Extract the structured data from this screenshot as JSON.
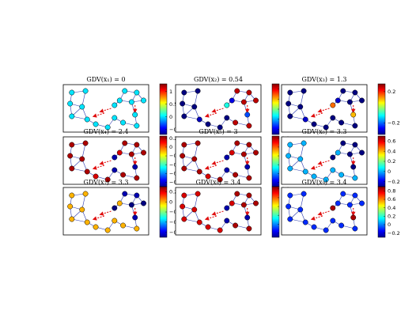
{
  "figure": {
    "panels": [
      {
        "title": "GDV(x₁) = 0",
        "colorbar_ticks": [
          "1",
          "0.5",
          "0",
          "−0.5"
        ],
        "colorbar_range": [
          -0.7,
          1.3
        ],
        "node_values": [
          0.0,
          0.0,
          0.0,
          0.0,
          0.0,
          0.0,
          0.0,
          0.0,
          0.0,
          0.0,
          0.0,
          0.0,
          0.0,
          0.0,
          0.0,
          0.0,
          0.0,
          0.0
        ]
      },
      {
        "title": "GDV(x₂) = 0.54",
        "colorbar_ticks": [
          "0.3",
          "0.2",
          "0.1",
          "0",
          "−0.1"
        ],
        "colorbar_range": [
          -0.15,
          0.35
        ],
        "node_values": [
          -0.15,
          -0.15,
          -0.15,
          -0.15,
          -0.15,
          -0.12,
          0.05,
          -0.15,
          -0.15,
          0.32,
          0.32,
          -0.1,
          0.32,
          0.32,
          -0.05,
          0.32,
          0.32,
          -0.15
        ]
      },
      {
        "title": "GDV(x₃) = 1.3",
        "colorbar_ticks": [
          "0.2",
          "−0.2"
        ],
        "colorbar_range": [
          -0.35,
          0.3
        ],
        "node_values": [
          -0.35,
          -0.35,
          -0.35,
          -0.35,
          -0.35,
          -0.3,
          0.15,
          -0.35,
          -0.35,
          -0.35,
          -0.35,
          -0.3,
          -0.35,
          -0.35,
          0.1,
          -0.35,
          -0.35,
          -0.35
        ]
      },
      {
        "title": "GDV(x₄) = 2.4",
        "colorbar_ticks": [
          "0.2",
          "0",
          "−0.2",
          "−0.4",
          "−0.6",
          "−0.8"
        ],
        "colorbar_range": [
          -0.9,
          0.25
        ],
        "node_values": [
          0.2,
          0.2,
          0.2,
          0.2,
          0.2,
          0.2,
          -0.85,
          0.15,
          0.2,
          0.2,
          0.2,
          0.15,
          0.2,
          0.2,
          -0.85,
          0.2,
          0.2,
          -0.85
        ]
      },
      {
        "title": "GDV(x₅) = 3",
        "colorbar_ticks": [
          "0.2",
          "0",
          "−0.2",
          "−0.4",
          "−0.6",
          "−0.8"
        ],
        "colorbar_range": [
          -0.9,
          0.25
        ],
        "node_values": [
          0.2,
          0.2,
          0.2,
          0.2,
          0.2,
          0.2,
          -0.85,
          0.15,
          0.2,
          0.2,
          0.2,
          0.15,
          0.2,
          0.2,
          -0.85,
          0.2,
          0.2,
          -0.85
        ]
      },
      {
        "title": "GDV(x₆) = 3.3",
        "colorbar_ticks": [
          "0.6",
          "0.4",
          "0.2",
          "0",
          "−0.2"
        ],
        "colorbar_range": [
          -0.3,
          0.7
        ],
        "node_values": [
          0.0,
          0.0,
          0.0,
          0.0,
          0.0,
          0.0,
          -0.3,
          0.0,
          0.0,
          -0.3,
          -0.3,
          0.0,
          -0.3,
          -0.3,
          -0.3,
          0.0,
          0.0,
          0.0
        ]
      },
      {
        "title": "GDV(x₇) = 3.3",
        "colorbar_ticks": [
          "0.2",
          "0",
          "−0.2",
          "−0.4",
          "−0.6"
        ],
        "colorbar_range": [
          -0.7,
          0.3
        ],
        "node_values": [
          0.0,
          0.0,
          0.0,
          0.0,
          0.0,
          0.0,
          -0.7,
          0.0,
          0.0,
          -0.65,
          -0.65,
          0.0,
          -0.7,
          -0.7,
          -0.65,
          0.0,
          0.0,
          0.0
        ]
      },
      {
        "title": "GDV(x₈) = 3.4",
        "colorbar_ticks": [
          "0.2",
          "0",
          "−0.2",
          "−0.4",
          "−0.6",
          "−0.8"
        ],
        "colorbar_range": [
          -0.9,
          0.25
        ],
        "node_values": [
          0.15,
          0.15,
          0.15,
          0.15,
          0.15,
          0.15,
          -0.85,
          0.15,
          0.15,
          0.2,
          0.2,
          0.15,
          0.2,
          0.2,
          -0.85,
          0.2,
          0.2,
          -0.85
        ]
      },
      {
        "title": "GDV(x₉) = 3.4",
        "colorbar_ticks": [
          "0.8",
          "0.6",
          "0.4",
          "0.2",
          "0",
          "−0.2"
        ],
        "colorbar_range": [
          -0.3,
          0.9
        ],
        "node_values": [
          -0.1,
          -0.1,
          -0.1,
          -0.1,
          -0.1,
          -0.1,
          0.85,
          -0.1,
          -0.1,
          -0.1,
          -0.1,
          -0.1,
          -0.1,
          -0.1,
          0.85,
          -0.1,
          -0.1,
          -0.1
        ]
      }
    ]
  },
  "colors": {
    "edge": "#2a3ab0",
    "arrow": "#e01010",
    "node_stroke": "#000000"
  }
}
